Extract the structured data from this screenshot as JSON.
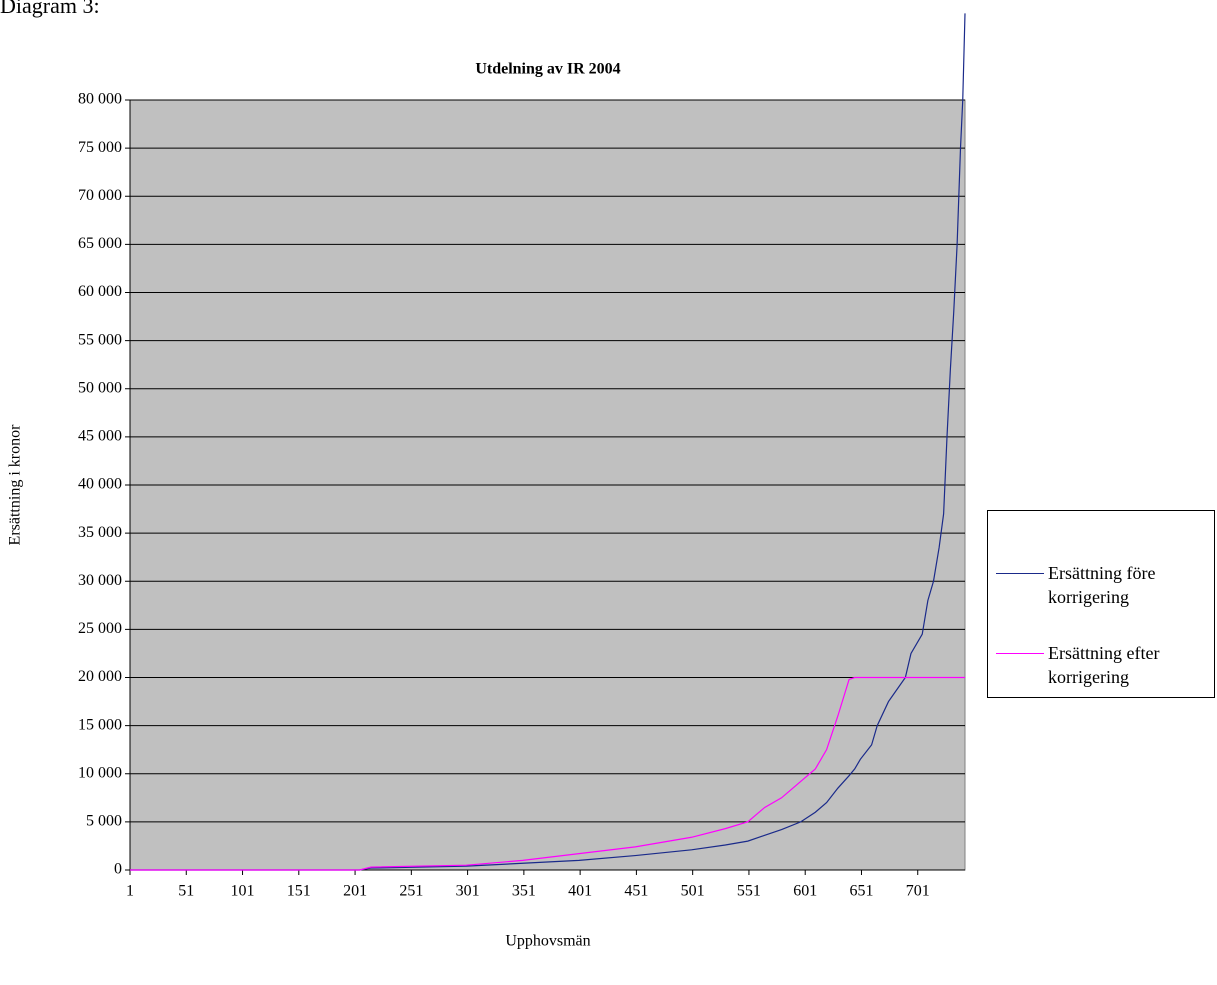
{
  "chart_data": {
    "type": "line",
    "heading": "Diagram 3:",
    "title": "Utdelning av IR 2004",
    "x_label": "Upphovsmän",
    "y_label": "Ersättning i kronor",
    "x": [
      1,
      205,
      215,
      300,
      350,
      400,
      450,
      500,
      530,
      550,
      565,
      580,
      597,
      610,
      620,
      630,
      640,
      645,
      650,
      660,
      665,
      675,
      690,
      695,
      705,
      710,
      715,
      720,
      724,
      727,
      730,
      733,
      736,
      739,
      741,
      743
    ],
    "series": [
      {
        "name": "Ersättning före korrigering",
        "color": "#1a2a8a",
        "values": [
          0,
          0,
          200,
          400,
          700,
          1000,
          1500,
          2100,
          2600,
          3000,
          3600,
          4200,
          5000,
          6000,
          7000,
          8500,
          9800,
          10500,
          11500,
          13000,
          15000,
          17500,
          20000,
          22500,
          24500,
          28000,
          30000,
          33500,
          37000,
          45000,
          52000,
          58000,
          65000,
          75000,
          80000,
          89000
        ]
      },
      {
        "name": "Ersättning efter korrigering",
        "color": "#ff00ff",
        "values": [
          0,
          0,
          300,
          500,
          1000,
          1700,
          2400,
          3400,
          4300,
          5000,
          6500,
          7500,
          9200,
          10500,
          12500,
          16000,
          19800,
          20000,
          20000,
          20000,
          20000,
          20000,
          20000,
          20000,
          20000,
          20000,
          20000,
          20000,
          20000,
          20000,
          20000,
          20000,
          20000,
          20000,
          20000,
          20000
        ]
      }
    ],
    "xlim": [
      1,
      743
    ],
    "xticks": [
      1,
      51,
      101,
      151,
      201,
      251,
      301,
      351,
      401,
      451,
      501,
      551,
      601,
      651,
      701
    ],
    "ylim": [
      0,
      80000
    ],
    "yticks": [
      0,
      {
        "value": 5000,
        "label": "5 000"
      },
      {
        "value": 10000,
        "label": "10 000"
      },
      {
        "value": 15000,
        "label": "15 000"
      },
      {
        "value": 20000,
        "label": "20 000"
      },
      {
        "value": 25000,
        "label": "25 000"
      },
      {
        "value": 30000,
        "label": "30 000"
      },
      {
        "value": 35000,
        "label": "35 000"
      },
      {
        "value": 40000,
        "label": "40 000"
      },
      {
        "value": 45000,
        "label": "45 000"
      },
      {
        "value": 50000,
        "label": "50 000"
      },
      {
        "value": 55000,
        "label": "55 000"
      },
      {
        "value": 60000,
        "label": "60 000"
      },
      {
        "value": 65000,
        "label": "65 000"
      },
      {
        "value": 70000,
        "label": "70 000"
      },
      {
        "value": 75000,
        "label": "75 000"
      },
      {
        "value": 80000,
        "label": "80 000"
      }
    ],
    "grid": true,
    "plot_background": "#c0c0c0",
    "legend": "right"
  }
}
